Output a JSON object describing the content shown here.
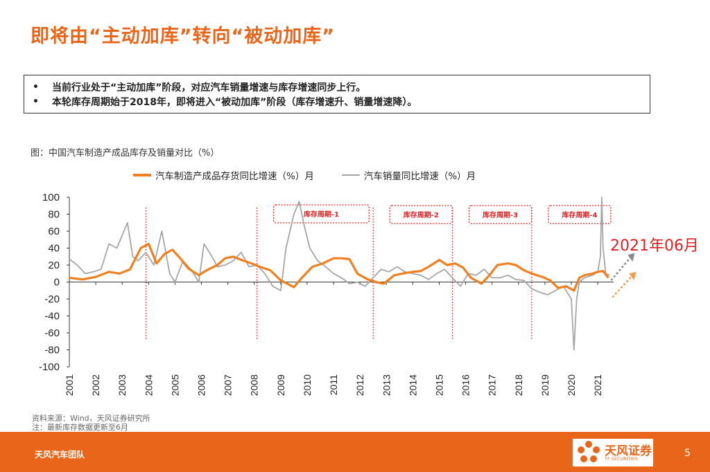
{
  "header": {
    "title": "即将由“主动加库”转向“被动加库”"
  },
  "summary": {
    "bullet": "•",
    "lines": [
      "当前行业处于“主动加库”阶段，对应汽车销量增速与库存增速同步上行。",
      "本轮库存周期始于2018年，即将进入“被动加库”阶段（库存增速升、销量增速降）。"
    ]
  },
  "figure": {
    "caption": "图：中国汽车制造产成品库存及销量对比（%）"
  },
  "chart_data": {
    "type": "line",
    "xlabel": "",
    "ylabel": "",
    "ylim": [
      -100,
      100
    ],
    "yticks": [
      100,
      80,
      60,
      40,
      20,
      0,
      -20,
      -40,
      -60,
      -80,
      -100
    ],
    "xlim": [
      2001,
      2021.6
    ],
    "xticks": [
      "2001",
      "2002",
      "2003",
      "2004",
      "2005",
      "2006",
      "2007",
      "2008",
      "2009",
      "2010",
      "2011",
      "2012",
      "2013",
      "2014",
      "2015",
      "2016",
      "2017",
      "2018",
      "2019",
      "2020",
      "2021"
    ],
    "grid": false,
    "legend_position": "top",
    "colors": {
      "inventory": "#F07F1E",
      "sales": "#A5A5A5",
      "cycle_marker": "#E02020",
      "annotation": "#E02020"
    },
    "series": [
      {
        "name": "汽车制造产成品存货同比增速（%）月",
        "x": [
          2001.0,
          2001.5,
          2002.0,
          2002.5,
          2002.9,
          2003.3,
          2003.7,
          2004.0,
          2004.3,
          2004.6,
          2004.9,
          2005.2,
          2005.5,
          2005.9,
          2006.2,
          2006.6,
          2006.9,
          2007.2,
          2007.6,
          2007.9,
          2008.2,
          2008.6,
          2009.0,
          2009.5,
          2009.8,
          2010.2,
          2010.6,
          2011.0,
          2011.3,
          2011.6,
          2011.9,
          2012.3,
          2012.6,
          2012.9,
          2013.3,
          2013.6,
          2014.0,
          2014.3,
          2014.6,
          2015.0,
          2015.3,
          2015.6,
          2015.9,
          2016.2,
          2016.6,
          2016.9,
          2017.2,
          2017.6,
          2017.9,
          2018.2,
          2018.5,
          2018.9,
          2019.2,
          2019.5,
          2019.8,
          2020.1,
          2020.3,
          2020.5,
          2020.8,
          2021.0,
          2021.2,
          2021.4
        ],
        "values": [
          5,
          3,
          6,
          12,
          10,
          15,
          40,
          45,
          22,
          33,
          38,
          28,
          16,
          8,
          14,
          20,
          28,
          30,
          25,
          22,
          18,
          14,
          2,
          -6,
          5,
          18,
          22,
          28,
          28,
          27,
          10,
          3,
          0,
          -2,
          8,
          10,
          12,
          13,
          18,
          26,
          20,
          22,
          17,
          5,
          -2,
          8,
          20,
          22,
          20,
          14,
          10,
          6,
          2,
          -7,
          -5,
          -10,
          5,
          8,
          10,
          12,
          13,
          5
        ]
      },
      {
        "name": "汽车销量同比增速（%）月",
        "x": [
          2001.0,
          2001.3,
          2001.6,
          2001.9,
          2002.2,
          2002.5,
          2002.8,
          2003.0,
          2003.2,
          2003.4,
          2003.6,
          2003.9,
          2004.2,
          2004.5,
          2004.8,
          2005.0,
          2005.3,
          2005.6,
          2005.9,
          2006.1,
          2006.4,
          2006.6,
          2006.9,
          2007.2,
          2007.5,
          2007.8,
          2008.1,
          2008.4,
          2008.7,
          2009.0,
          2009.2,
          2009.5,
          2009.7,
          2009.9,
          2010.1,
          2010.4,
          2010.7,
          2011.0,
          2011.3,
          2011.6,
          2011.9,
          2012.2,
          2012.5,
          2012.8,
          2013.1,
          2013.4,
          2013.7,
          2014.0,
          2014.3,
          2014.6,
          2014.9,
          2015.2,
          2015.5,
          2015.8,
          2016.1,
          2016.4,
          2016.7,
          2017.0,
          2017.3,
          2017.6,
          2017.9,
          2018.2,
          2018.5,
          2018.8,
          2019.1,
          2019.4,
          2019.7,
          2020.0,
          2020.1,
          2020.2,
          2020.3,
          2020.5,
          2020.8,
          2021.0,
          2021.1,
          2021.15,
          2021.2,
          2021.3,
          2021.45
        ],
        "values": [
          27,
          20,
          10,
          12,
          15,
          45,
          40,
          55,
          70,
          30,
          25,
          35,
          20,
          60,
          10,
          0,
          25,
          15,
          0,
          45,
          30,
          18,
          20,
          25,
          35,
          18,
          20,
          10,
          -5,
          -10,
          40,
          80,
          95,
          65,
          40,
          25,
          18,
          10,
          5,
          -2,
          0,
          -5,
          5,
          15,
          12,
          18,
          12,
          10,
          8,
          3,
          10,
          15,
          5,
          -5,
          10,
          8,
          15,
          5,
          5,
          8,
          3,
          2,
          -8,
          -12,
          -15,
          -10,
          -5,
          -20,
          -80,
          -20,
          0,
          5,
          8,
          12,
          30,
          100,
          40,
          10,
          8
        ]
      }
    ],
    "cycles": [
      {
        "label": "库存周期-1",
        "start": 2008.1,
        "end": 2012.5
      },
      {
        "label": "库存周期-2",
        "start": 2012.5,
        "end": 2015.5
      },
      {
        "label": "库存周期-3",
        "start": 2015.5,
        "end": 2018.5
      },
      {
        "label": "库存周期-4",
        "start": 2018.5,
        "end": 2021.5
      }
    ],
    "extra_marker": {
      "x": 2003.9
    },
    "annotation": {
      "text": "2021年06月"
    }
  },
  "source": {
    "line1": "资料来源：Wind，天风证券研究所",
    "line2": "注：最新库存数据更新至6月"
  },
  "footer": {
    "team": "天风汽车团队",
    "logo_text": "天风证券",
    "logo_sub": "TF SECURITIES",
    "page": "5"
  }
}
